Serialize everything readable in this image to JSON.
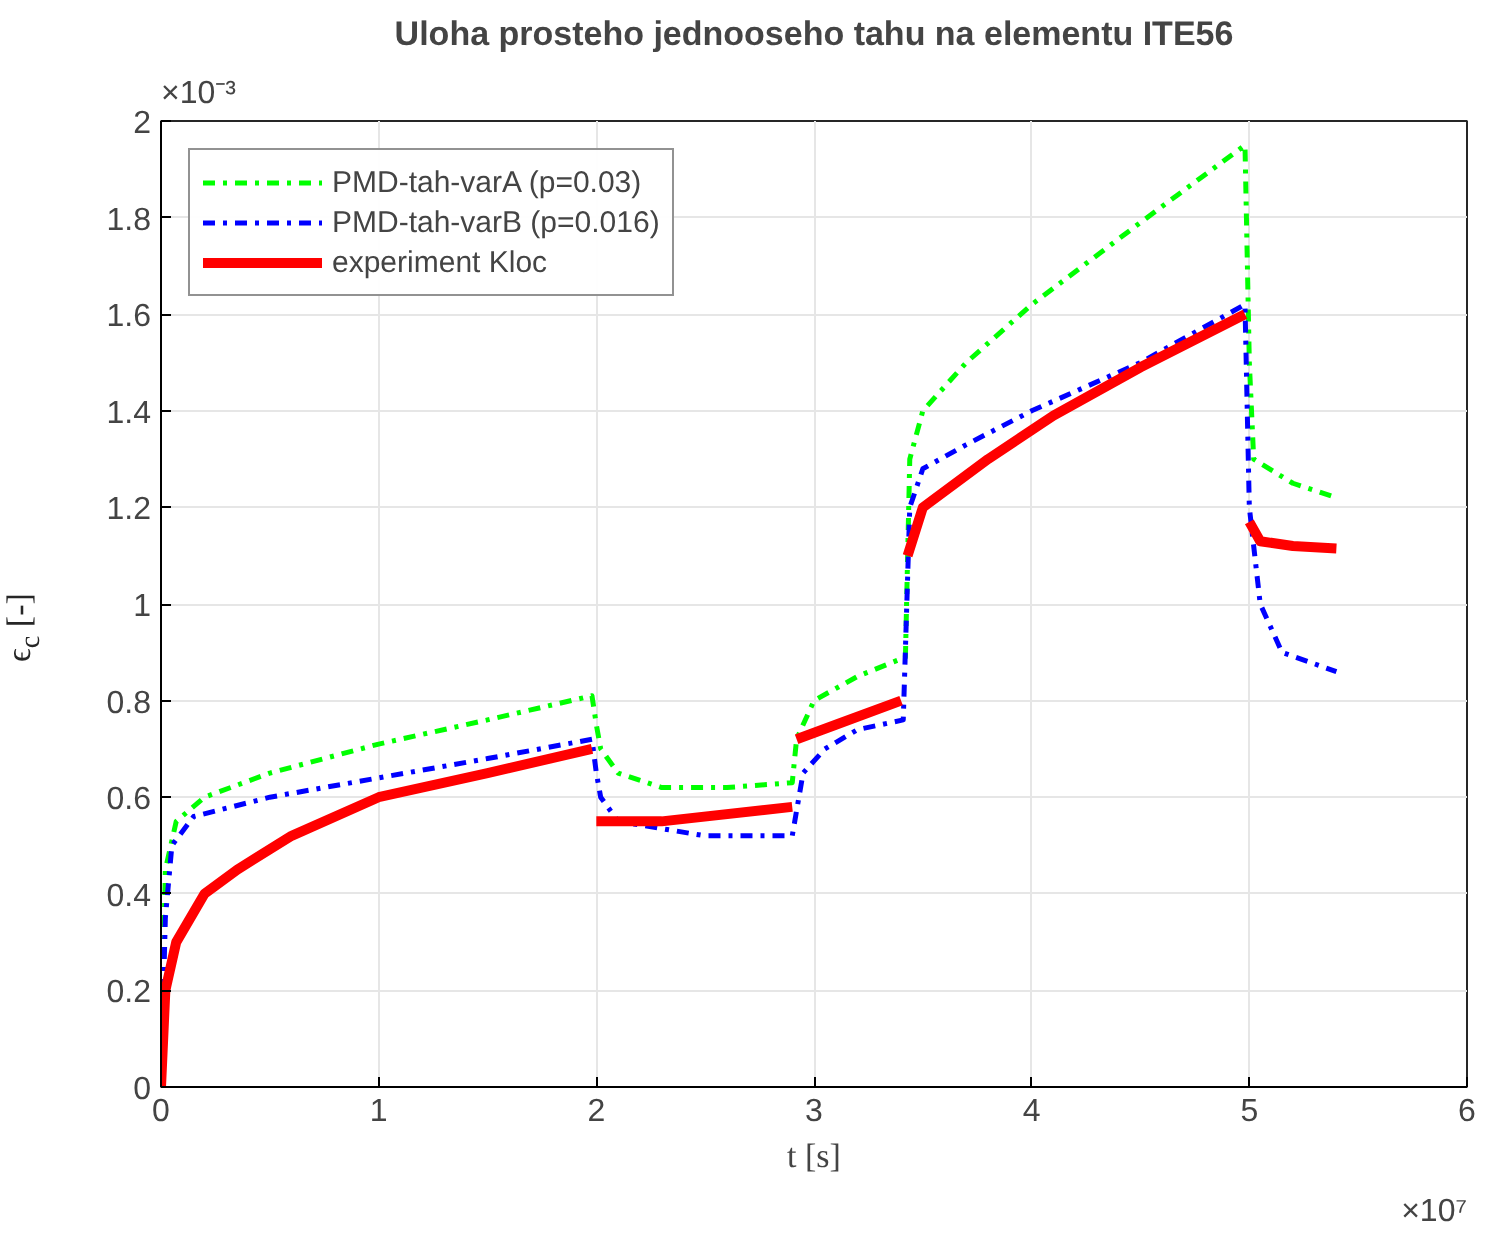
{
  "chart_data": {
    "type": "line",
    "title": "Uloha prosteho jednooseho tahu na elementu ITE56",
    "xlabel": "t [s]",
    "ylabel": "ϵ$_{c}$ [-]",
    "annotations": [
      "×10⁻³",
      "×10⁷"
    ],
    "xlim": [
      0,
      6
    ],
    "xticks": [
      0,
      1,
      2,
      3,
      4,
      5,
      6
    ],
    "ylim": [
      0,
      2
    ],
    "yticks": [
      0,
      0.2,
      0.4,
      0.6,
      0.8,
      1,
      1.2,
      1.4,
      1.6,
      1.8,
      2
    ],
    "grid": true,
    "legend": "top left",
    "series": [
      {
        "name": "PMD-tah-varA (p=0.03)",
        "color": "#00ff00",
        "line_style": "dashdot",
        "x": [
          0,
          0.02,
          0.07,
          0.2,
          0.5,
          1.0,
          1.5,
          1.98,
          2.0,
          2.02,
          2.1,
          2.3,
          2.6,
          2.9,
          2.92,
          3.0,
          3.2,
          3.42,
          3.44,
          3.5,
          3.7,
          4.0,
          4.5,
          4.98,
          5.0,
          5.02,
          5.2,
          5.4
        ],
        "values": [
          0,
          0.45,
          0.55,
          0.6,
          0.65,
          0.71,
          0.76,
          0.81,
          0.75,
          0.7,
          0.65,
          0.62,
          0.62,
          0.63,
          0.72,
          0.8,
          0.85,
          0.89,
          1.3,
          1.4,
          1.5,
          1.62,
          1.79,
          1.95,
          1.5,
          1.3,
          1.25,
          1.22
        ]
      },
      {
        "name": "PMD-tah-varB (p=0.016)",
        "color": "#0000ff",
        "line_style": "dashdot",
        "x": [
          0,
          0.02,
          0.05,
          0.15,
          0.5,
          1.0,
          1.5,
          1.98,
          2.0,
          2.02,
          2.1,
          2.5,
          2.9,
          2.95,
          3.05,
          3.2,
          3.41,
          3.44,
          3.5,
          3.7,
          4.0,
          4.5,
          4.98,
          5.0,
          5.05,
          5.15,
          5.4
        ],
        "values": [
          0,
          0.35,
          0.5,
          0.56,
          0.6,
          0.64,
          0.68,
          0.72,
          0.65,
          0.6,
          0.55,
          0.52,
          0.52,
          0.65,
          0.7,
          0.74,
          0.76,
          1.2,
          1.28,
          1.33,
          1.4,
          1.5,
          1.62,
          1.2,
          1.0,
          0.9,
          0.86
        ]
      },
      {
        "name": "experiment Kloc",
        "color": "#ff0000",
        "line_style": "solid",
        "x": [
          0,
          0.02,
          0.07,
          0.2,
          0.35,
          0.6,
          1.0,
          1.5,
          1.98,
          1.99,
          2.0,
          2.3,
          2.9,
          2.91,
          2.92,
          3.1,
          3.4,
          3.42,
          3.43,
          3.5,
          3.8,
          4.1,
          4.5,
          4.98,
          4.99,
          5.0,
          5.05,
          5.2,
          5.4
        ],
        "values": [
          0,
          0.2,
          0.3,
          0.4,
          0.45,
          0.52,
          0.6,
          0.65,
          0.7,
          null,
          0.55,
          0.55,
          0.58,
          null,
          0.72,
          0.75,
          0.8,
          null,
          1.1,
          1.2,
          1.3,
          1.39,
          1.49,
          1.6,
          null,
          1.17,
          1.13,
          1.12,
          1.115
        ]
      }
    ]
  }
}
